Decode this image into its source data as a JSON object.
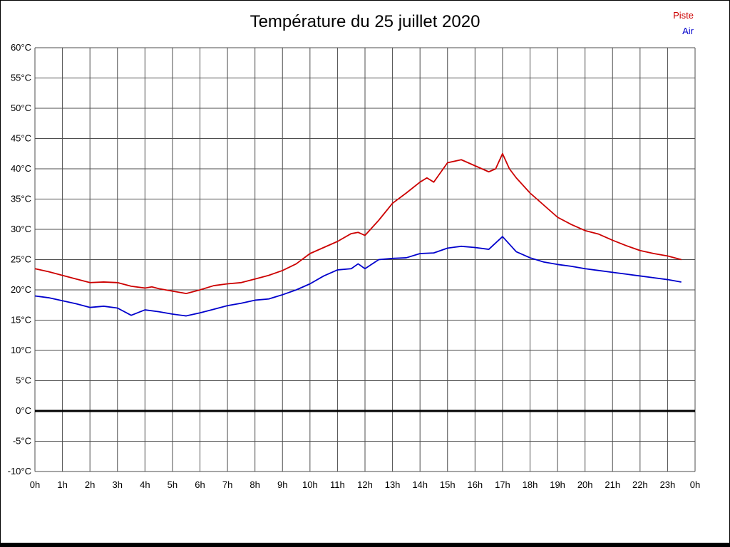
{
  "title": "Température du 25 juillet 2020",
  "legend": [
    {
      "label": "Piste",
      "color": "#cc0000"
    },
    {
      "label": "Air",
      "color": "#0000cc"
    }
  ],
  "chart_data": {
    "type": "line",
    "title": "Température du 25 juillet 2020",
    "xlim": [
      0,
      24
    ],
    "ylim": [
      -10,
      60
    ],
    "grid": true,
    "legend_position": "top-right",
    "colors": {
      "grid": "#4d4d4d",
      "zero_line": "#000000",
      "text": "#000000"
    },
    "x_tick_values": [
      0,
      1,
      2,
      3,
      4,
      5,
      6,
      7,
      8,
      9,
      10,
      11,
      12,
      13,
      14,
      15,
      16,
      17,
      18,
      19,
      20,
      21,
      22,
      23,
      24
    ],
    "x_tick_labels": [
      "0h",
      "1h",
      "2h",
      "3h",
      "4h",
      "5h",
      "6h",
      "7h",
      "8h",
      "9h",
      "10h",
      "11h",
      "12h",
      "13h",
      "14h",
      "15h",
      "16h",
      "17h",
      "18h",
      "19h",
      "20h",
      "21h",
      "22h",
      "23h",
      "0h"
    ],
    "y_tick_values": [
      -10,
      -5,
      0,
      5,
      10,
      15,
      20,
      25,
      30,
      35,
      40,
      45,
      50,
      55,
      60
    ],
    "y_tick_labels": [
      "-10°C",
      "-5°C",
      "0°C",
      "5°C",
      "10°C",
      "15°C",
      "20°C",
      "25°C",
      "30°C",
      "35°C",
      "40°C",
      "45°C",
      "50°C",
      "55°C",
      "60°C"
    ],
    "series": [
      {
        "name": "Piste",
        "color": "#cc0000",
        "x": [
          0,
          0.5,
          1,
          1.5,
          2,
          2.5,
          3,
          3.5,
          4,
          4.25,
          4.5,
          5,
          5.5,
          6,
          6.5,
          7,
          7.5,
          8,
          8.5,
          9,
          9.5,
          10,
          10.5,
          11,
          11.5,
          11.75,
          12,
          12.5,
          13,
          13.5,
          14,
          14.25,
          14.5,
          15,
          15.5,
          16,
          16.5,
          16.75,
          17,
          17.25,
          17.5,
          18,
          18.5,
          19,
          19.5,
          20,
          20.5,
          21,
          21.5,
          22,
          22.5,
          23,
          23.5
        ],
        "y": [
          23.5,
          23,
          22.4,
          21.8,
          21.2,
          21.3,
          21.2,
          20.6,
          20.3,
          20.5,
          20.2,
          19.8,
          19.4,
          20,
          20.7,
          21,
          21.2,
          21.8,
          22.4,
          23.2,
          24.3,
          26,
          27,
          28,
          29.3,
          29.5,
          29,
          31.5,
          34.3,
          36,
          37.8,
          38.5,
          37.8,
          41,
          41.5,
          40.5,
          39.5,
          40,
          42.5,
          40,
          38.5,
          36,
          34,
          32,
          30.8,
          29.8,
          29.2,
          28.2,
          27.3,
          26.5,
          26,
          25.6,
          25
        ]
      },
      {
        "name": "Air",
        "color": "#0000cc",
        "x": [
          0,
          0.5,
          1,
          1.5,
          2,
          2.5,
          3,
          3.5,
          4,
          4.5,
          5,
          5.5,
          6,
          6.5,
          7,
          7.5,
          8,
          8.5,
          9,
          9.5,
          10,
          10.5,
          11,
          11.5,
          11.75,
          12,
          12.5,
          13,
          13.5,
          14,
          14.5,
          15,
          15.5,
          16,
          16.5,
          17,
          17.5,
          18,
          18.5,
          19,
          19.5,
          20,
          20.5,
          21,
          21.5,
          22,
          22.5,
          23,
          23.5
        ],
        "y": [
          19,
          18.7,
          18.2,
          17.7,
          17.1,
          17.3,
          17,
          15.8,
          16.7,
          16.4,
          16,
          15.7,
          16.2,
          16.8,
          17.4,
          17.8,
          18.3,
          18.5,
          19.2,
          20,
          21,
          22.3,
          23.3,
          23.5,
          24.3,
          23.5,
          25,
          25.2,
          25.3,
          26,
          26.1,
          26.9,
          27.2,
          27,
          26.7,
          28.8,
          26.3,
          25.3,
          24.6,
          24.2,
          23.9,
          23.5,
          23.2,
          22.9,
          22.6,
          22.3,
          22,
          21.7,
          21.3
        ]
      }
    ]
  }
}
